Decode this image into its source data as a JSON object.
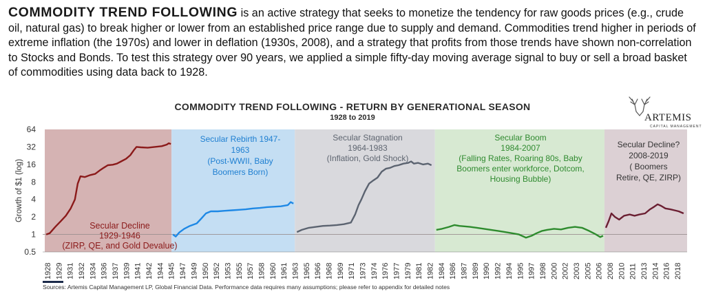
{
  "intro": {
    "lead": "COMMODITY TREND FOLLOWING",
    "body": " is an active strategy that seeks to monetize the tendency for raw goods prices (e.g., crude oil, natural gas) to break higher or lower from an established price range due to supply and demand. Commodities trend higher in periods of extreme inflation (the 1970s) and lower in deflation (1930s, 2008), and a strategy that profits from those trends have shown non-correlation to Stocks and Bonds. To test this strategy over 90 years, we applied a simple fifty-day moving average signal to buy or sell a broad basket of commodities using data back to 1928."
  },
  "logo": {
    "name": "ARTEMIS",
    "sub": "CAPITAL MANAGEMENT"
  },
  "source": "Sources: Artemis Capital Management LP, Global Financial Data. Performance data requires many assumptions; please refer to appendix for detailed notes",
  "chart_data": {
    "type": "line",
    "title": "COMMODITY TREND FOLLOWING - RETURN BY GENERATIONAL SEASON",
    "subtitle": "1928 to 2019",
    "ylabel": "Growth of $1 (log)",
    "xlabel": "",
    "yscale": "log2",
    "ylim": [
      0.5,
      64
    ],
    "yticks": [
      "0.5",
      "1",
      "2",
      "4",
      "8",
      "16",
      "32",
      "64"
    ],
    "xlim": [
      1928,
      2020
    ],
    "xticks": [
      "1928",
      "1929",
      "1931",
      "1932",
      "1934",
      "1936",
      "1937",
      "1939",
      "1941",
      "1942",
      "1944",
      "1945",
      "1947",
      "1949",
      "1950",
      "1952",
      "1953",
      "1955",
      "1957",
      "1958",
      "1960",
      "1961",
      "1963",
      "1965",
      "1966",
      "1968",
      "1969",
      "1971",
      "1973",
      "1974",
      "1976",
      "1977",
      "1979",
      "1981",
      "1982",
      "1984",
      "1986",
      "1987",
      "1989",
      "1990",
      "1992",
      "1994",
      "1995",
      "1997",
      "1998",
      "2000",
      "2002",
      "2003",
      "2005",
      "2006",
      "2008",
      "2010",
      "2011",
      "2013",
      "2014",
      "2016",
      "2018"
    ],
    "seasons": [
      {
        "start": 1928.3,
        "end": 1946.4,
        "color": "#d5b3b3",
        "text_color": "#8b1a1a",
        "lines": [
          "Secular Decline",
          "1929-1946",
          "(ZIRP, QE, and Gold Devalue)"
        ]
      },
      {
        "start": 1946.4,
        "end": 1964.0,
        "color": "#c4def3",
        "text_color": "#1e7fd1",
        "lines": [
          "Secular Rebirth 1947-",
          "1963",
          "(Post-WWII, Baby",
          "Boomers Born)"
        ]
      },
      {
        "start": 1964.0,
        "end": 1984.0,
        "color": "#d9d9dd",
        "text_color": "#5e6570",
        "lines": [
          "Secular Stagnation",
          "1964-1983",
          "(Inflation, Gold Shock)"
        ]
      },
      {
        "start": 1984.0,
        "end": 2008.2,
        "color": "#d7e9d2",
        "text_color": "#2f8a2f",
        "lines": [
          "Secular Boom",
          "1984-2007",
          "(Falling Rates, Roaring 80s, Baby",
          "Boomers enter workforce, Dotcom,",
          "Housing Bubble)"
        ]
      },
      {
        "start": 2008.2,
        "end": 2020.0,
        "color": "#dcd0d4",
        "text_color": "#333333",
        "lines": [
          "Secular Decline?",
          "2008-2019",
          "( Boomers",
          "Retire, QE, ZIRP)"
        ]
      }
    ],
    "series": [
      {
        "color": "#8b1a1a",
        "points": [
          [
            1928.5,
            1.0
          ],
          [
            1929.0,
            1.05
          ],
          [
            1929.8,
            1.35
          ],
          [
            1930.6,
            1.7
          ],
          [
            1931.3,
            2.1
          ],
          [
            1932.0,
            2.8
          ],
          [
            1932.6,
            4.0
          ],
          [
            1933.0,
            7.5
          ],
          [
            1933.4,
            10.0
          ],
          [
            1934.0,
            9.7
          ],
          [
            1934.8,
            10.5
          ],
          [
            1935.5,
            11.0
          ],
          [
            1936.1,
            12.5
          ],
          [
            1936.7,
            14.0
          ],
          [
            1937.3,
            15.5
          ],
          [
            1938.0,
            15.8
          ],
          [
            1938.6,
            16.5
          ],
          [
            1939.2,
            18.0
          ],
          [
            1939.9,
            20.0
          ],
          [
            1940.5,
            23.0
          ],
          [
            1941.0,
            28.0
          ],
          [
            1941.4,
            32.0
          ],
          [
            1942.0,
            31.5
          ],
          [
            1943.0,
            31.0
          ],
          [
            1944.0,
            32.0
          ],
          [
            1945.0,
            33.0
          ],
          [
            1945.7,
            35.0
          ],
          [
            1946.0,
            37.0
          ],
          [
            1946.3,
            36.0
          ]
        ]
      },
      {
        "color": "#1e88e5",
        "points": [
          [
            1946.6,
            1.0
          ],
          [
            1947.0,
            0.92
          ],
          [
            1947.5,
            1.08
          ],
          [
            1948.2,
            1.25
          ],
          [
            1949.0,
            1.4
          ],
          [
            1950.0,
            1.55
          ],
          [
            1950.6,
            1.85
          ],
          [
            1951.3,
            2.3
          ],
          [
            1952.0,
            2.5
          ],
          [
            1953.0,
            2.5
          ],
          [
            1954.0,
            2.55
          ],
          [
            1955.0,
            2.6
          ],
          [
            1956.0,
            2.65
          ],
          [
            1957.0,
            2.7
          ],
          [
            1958.0,
            2.8
          ],
          [
            1959.0,
            2.85
          ],
          [
            1960.0,
            2.95
          ],
          [
            1961.0,
            3.0
          ],
          [
            1962.0,
            3.05
          ],
          [
            1963.0,
            3.2
          ],
          [
            1963.4,
            3.6
          ],
          [
            1963.8,
            3.4
          ]
        ]
      },
      {
        "color": "#5b6370",
        "points": [
          [
            1964.3,
            1.1
          ],
          [
            1965.0,
            1.2
          ],
          [
            1966.0,
            1.3
          ],
          [
            1967.0,
            1.35
          ],
          [
            1968.0,
            1.4
          ],
          [
            1969.0,
            1.42
          ],
          [
            1970.0,
            1.45
          ],
          [
            1971.0,
            1.5
          ],
          [
            1972.0,
            1.6
          ],
          [
            1972.6,
            2.2
          ],
          [
            1973.1,
            3.2
          ],
          [
            1973.5,
            4.0
          ],
          [
            1974.0,
            5.5
          ],
          [
            1974.6,
            7.5
          ],
          [
            1975.2,
            8.5
          ],
          [
            1975.8,
            9.5
          ],
          [
            1976.4,
            12.0
          ],
          [
            1977.0,
            13.5
          ],
          [
            1977.6,
            14.0
          ],
          [
            1978.2,
            15.0
          ],
          [
            1978.8,
            15.5
          ],
          [
            1979.5,
            16.5
          ],
          [
            1980.2,
            17.0
          ],
          [
            1980.6,
            18.0
          ],
          [
            1981.0,
            16.5
          ],
          [
            1981.6,
            17.0
          ],
          [
            1982.3,
            16.0
          ],
          [
            1983.0,
            16.5
          ],
          [
            1983.5,
            15.5
          ]
        ]
      },
      {
        "color": "#2e8b2e",
        "points": [
          [
            1984.2,
            1.2
          ],
          [
            1985.0,
            1.25
          ],
          [
            1986.0,
            1.35
          ],
          [
            1986.8,
            1.45
          ],
          [
            1987.5,
            1.4
          ],
          [
            1988.2,
            1.38
          ],
          [
            1989.0,
            1.35
          ],
          [
            1990.0,
            1.3
          ],
          [
            1991.0,
            1.25
          ],
          [
            1992.0,
            1.2
          ],
          [
            1993.0,
            1.15
          ],
          [
            1994.0,
            1.1
          ],
          [
            1995.0,
            1.05
          ],
          [
            1996.0,
            1.0
          ],
          [
            1997.0,
            0.88
          ],
          [
            1997.8,
            0.95
          ],
          [
            1998.5,
            1.05
          ],
          [
            1999.3,
            1.15
          ],
          [
            2000.0,
            1.2
          ],
          [
            2001.0,
            1.25
          ],
          [
            2002.0,
            1.22
          ],
          [
            2003.0,
            1.3
          ],
          [
            2004.0,
            1.35
          ],
          [
            2005.0,
            1.3
          ],
          [
            2006.0,
            1.15
          ],
          [
            2007.0,
            1.0
          ],
          [
            2007.6,
            0.9
          ],
          [
            2008.0,
            0.95
          ]
        ]
      },
      {
        "color": "#6b1f32",
        "points": [
          [
            2008.4,
            1.3
          ],
          [
            2008.8,
            1.7
          ],
          [
            2009.2,
            2.3
          ],
          [
            2009.7,
            2.0
          ],
          [
            2010.3,
            1.8
          ],
          [
            2011.0,
            2.1
          ],
          [
            2011.8,
            2.2
          ],
          [
            2012.5,
            2.1
          ],
          [
            2013.2,
            2.2
          ],
          [
            2014.0,
            2.3
          ],
          [
            2014.7,
            2.7
          ],
          [
            2015.3,
            3.0
          ],
          [
            2015.8,
            3.3
          ],
          [
            2016.3,
            3.1
          ],
          [
            2016.9,
            2.8
          ],
          [
            2017.6,
            2.7
          ],
          [
            2018.2,
            2.6
          ],
          [
            2018.8,
            2.5
          ],
          [
            2019.5,
            2.3
          ]
        ]
      }
    ]
  }
}
